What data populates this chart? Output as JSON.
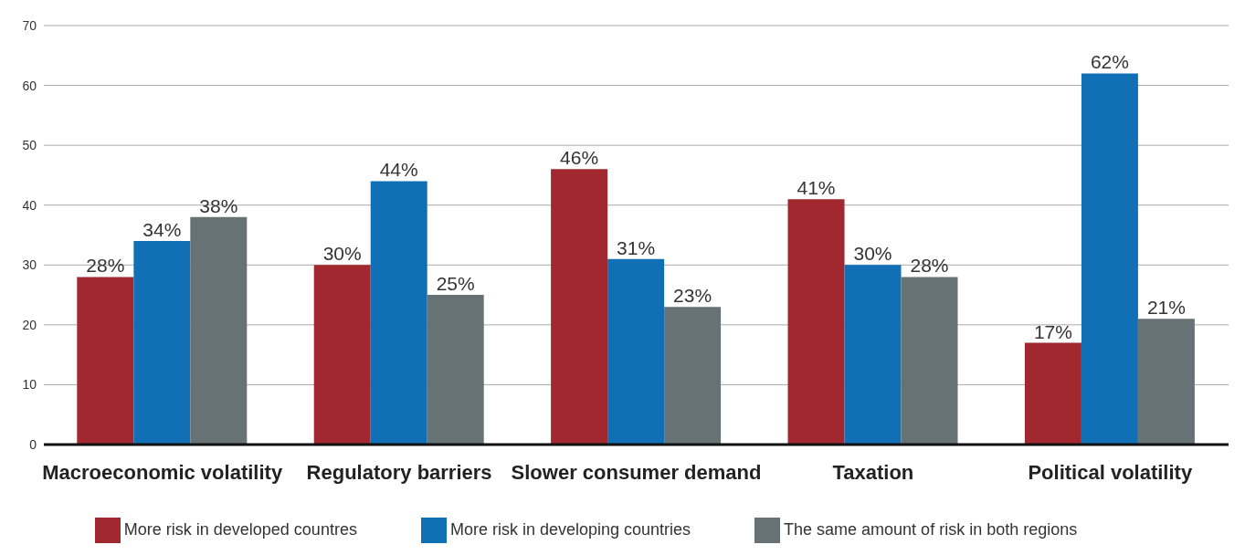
{
  "chart_data": {
    "type": "bar",
    "categories": [
      "Macroeconomic volatility",
      "Regulatory barriers",
      "Slower consumer demand",
      "Taxation",
      "Political volatility"
    ],
    "series": [
      {
        "name": "More risk in developed countres",
        "color": "#a0282e",
        "values": [
          28,
          30,
          46,
          41,
          17
        ],
        "value_labels": [
          "28%",
          "30%",
          "46%",
          "41%",
          "17%"
        ]
      },
      {
        "name": "More risk in developing countries",
        "color": "#1170b5",
        "values": [
          34,
          44,
          31,
          30,
          62
        ],
        "value_labels": [
          "34%",
          "44%",
          "31%",
          "30%",
          "62%"
        ]
      },
      {
        "name": "The same amount of risk in both regions",
        "color": "#677274",
        "values": [
          38,
          25,
          23,
          28,
          21
        ],
        "value_labels": [
          "38%",
          "25%",
          "23%",
          "28%",
          "21%"
        ]
      }
    ],
    "ylim": [
      0,
      70
    ],
    "yticks": [
      0,
      10,
      20,
      30,
      40,
      50,
      60,
      70
    ],
    "grid": "y",
    "legend": "bottom"
  }
}
